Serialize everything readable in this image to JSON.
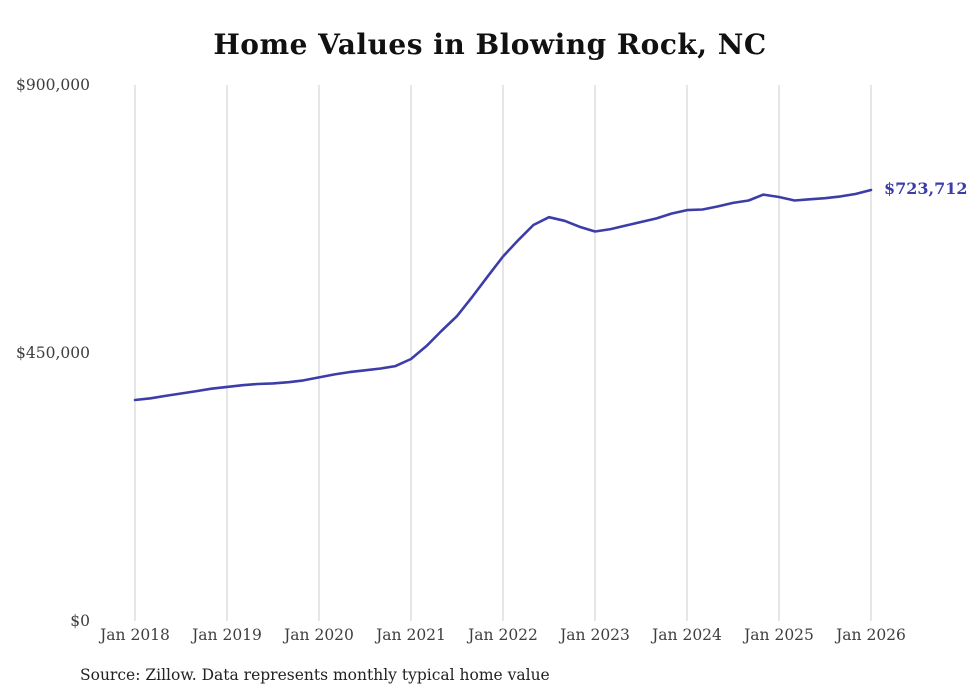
{
  "chart_data": {
    "type": "line",
    "title": "Home Values in Blowing Rock, NC",
    "source_note": "Source: Zillow. Data represents monthly typical home value",
    "line_color": "#3d3daa",
    "grid_color": "#cccccc",
    "grid": "vertical-only",
    "legend": "none",
    "ylim": [
      0,
      900000
    ],
    "y_ticks": [
      {
        "value": 0,
        "label": "$0"
      },
      {
        "value": 450000,
        "label": "$450,000"
      },
      {
        "value": 900000,
        "label": "$900,000"
      }
    ],
    "x_ticks": [
      {
        "year": 2018,
        "label": "Jan 2018"
      },
      {
        "year": 2019,
        "label": "Jan 2019"
      },
      {
        "year": 2020,
        "label": "Jan 2020"
      },
      {
        "year": 2021,
        "label": "Jan 2021"
      },
      {
        "year": 2022,
        "label": "Jan 2022"
      },
      {
        "year": 2023,
        "label": "Jan 2023"
      },
      {
        "year": 2024,
        "label": "Jan 2024"
      },
      {
        "year": 2025,
        "label": "Jan 2025"
      },
      {
        "year": 2026,
        "label": "Jan 2026"
      }
    ],
    "series_name": "Monthly typical home value",
    "x": [
      2018.0,
      2018.17,
      2018.33,
      2018.5,
      2018.67,
      2018.83,
      2019.0,
      2019.17,
      2019.33,
      2019.5,
      2019.67,
      2019.83,
      2020.0,
      2020.17,
      2020.33,
      2020.5,
      2020.67,
      2020.83,
      2021.0,
      2021.17,
      2021.33,
      2021.5,
      2021.67,
      2021.83,
      2022.0,
      2022.17,
      2022.33,
      2022.5,
      2022.67,
      2022.83,
      2023.0,
      2023.17,
      2023.33,
      2023.5,
      2023.67,
      2023.83,
      2024.0,
      2024.17,
      2024.33,
      2024.5,
      2024.67,
      2024.83,
      2025.0,
      2025.17,
      2025.33,
      2025.5,
      2025.67,
      2025.83,
      2026.0
    ],
    "values": [
      371000,
      374000,
      378000,
      382000,
      386000,
      390000,
      393000,
      396000,
      398000,
      399000,
      401000,
      404000,
      409000,
      414000,
      418000,
      421000,
      424000,
      428000,
      440000,
      462000,
      487000,
      512000,
      545000,
      578000,
      612000,
      640000,
      665000,
      678000,
      672000,
      662000,
      654000,
      658000,
      664000,
      670000,
      676000,
      684000,
      690000,
      691000,
      696000,
      702000,
      706000,
      716000,
      712000,
      706000,
      708000,
      710000,
      713000,
      717000,
      723712
    ],
    "annotation": {
      "label": "$723,712",
      "x": 2026.0,
      "value": 723712
    }
  }
}
